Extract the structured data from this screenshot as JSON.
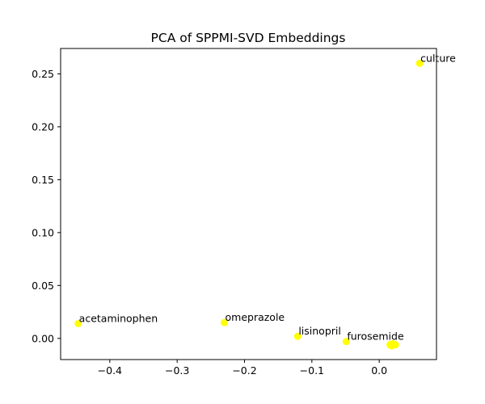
{
  "chart_data": {
    "type": "scatter",
    "title": "PCA of SPPMI-SVD Embeddings",
    "xlabel": "",
    "ylabel": "",
    "xlim": [
      -0.473,
      0.085
    ],
    "ylim": [
      -0.02,
      0.274
    ],
    "xticks": [
      -0.4,
      -0.3,
      -0.2,
      -0.1,
      0.0
    ],
    "xtick_labels": [
      "−0.4",
      "−0.3",
      "−0.2",
      "−0.1",
      "0.0"
    ],
    "yticks": [
      0.0,
      0.05,
      0.1,
      0.15,
      0.2,
      0.25
    ],
    "ytick_labels": [
      "0.00",
      "0.05",
      "0.10",
      "0.15",
      "0.20",
      "0.25"
    ],
    "grid": false,
    "marker_color": "#ffff00",
    "points": [
      {
        "label": "culture",
        "x": 0.06,
        "y": 0.26
      },
      {
        "label": "acetaminophen",
        "x": -0.447,
        "y": 0.014
      },
      {
        "label": "omeprazole",
        "x": -0.23,
        "y": 0.015
      },
      {
        "label": "lisinopril",
        "x": -0.121,
        "y": 0.002
      },
      {
        "label": "furosemide",
        "x": -0.049,
        "y": -0.003
      },
      {
        "label": "",
        "x": 0.016,
        "y": -0.006
      },
      {
        "label": "",
        "x": 0.018,
        "y": -0.007
      },
      {
        "label": "",
        "x": 0.02,
        "y": -0.005
      },
      {
        "label": "",
        "x": 0.022,
        "y": -0.006
      },
      {
        "label": "",
        "x": 0.024,
        "y": -0.006
      }
    ]
  }
}
